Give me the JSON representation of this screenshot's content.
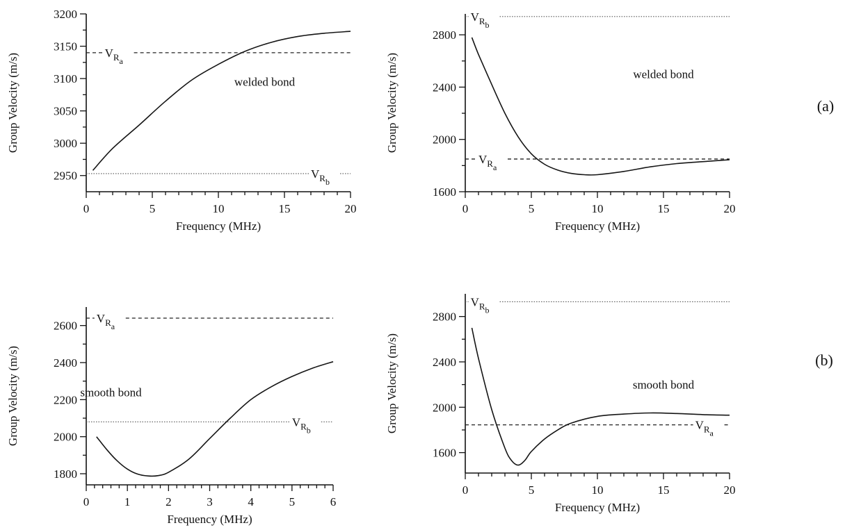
{
  "figure": {
    "row_labels": [
      "(a)",
      "(b)"
    ]
  },
  "chart_data": [
    {
      "type": "line",
      "row": "(a)",
      "xlabel": "Frequency (MHz)",
      "ylabel": "Group Velocity (m/s)",
      "xlim": [
        0,
        20
      ],
      "ylim": [
        2925,
        3200
      ],
      "xticks": [
        0,
        5,
        10,
        15,
        20
      ],
      "yticks": [
        2950,
        3000,
        3050,
        3100,
        3150,
        3200
      ],
      "annotation": {
        "text": "welded bond",
        "at": [
          13.5,
          3095
        ]
      },
      "reference_lines": [
        {
          "label": "Vₐ",
          "sym": "V",
          "sub": "R",
          "subsub": "a",
          "y": 3140,
          "style": "dashed",
          "x_range": [
            0,
            20
          ],
          "label_at": [
            1.4,
            3140
          ]
        },
        {
          "label": "Vᵦ",
          "sym": "V",
          "sub": "R",
          "subsub": "b",
          "y": 2953,
          "style": "dotted",
          "x_range": [
            0,
            20
          ],
          "label_at": [
            17.0,
            2953
          ]
        }
      ],
      "series": [
        {
          "x": [
            0.5,
            2,
            4,
            6,
            8,
            10,
            12,
            14,
            16,
            18,
            20
          ],
          "y": [
            2958,
            2992,
            3028,
            3065,
            3098,
            3122,
            3142,
            3156,
            3165,
            3170,
            3173
          ]
        }
      ]
    },
    {
      "type": "line",
      "row": "(a)",
      "xlabel": "Frequency (MHz)",
      "ylabel": "Group Velocity (m/s)",
      "xlim": [
        0,
        20
      ],
      "ylim": [
        1600,
        2960
      ],
      "xticks": [
        0,
        5,
        10,
        15,
        20
      ],
      "yticks": [
        1600,
        2000,
        2400,
        2800
      ],
      "annotation": {
        "text": "welded bond",
        "at": [
          15,
          2500
        ]
      },
      "reference_lines": [
        {
          "label": "Vᵦ",
          "sym": "V",
          "sub": "R",
          "subsub": "b",
          "y": 2940,
          "style": "dotted",
          "x_range": [
            0,
            20
          ],
          "label_at": [
            0.4,
            2940
          ]
        },
        {
          "label": "Vₐ",
          "sym": "V",
          "sub": "R",
          "subsub": "a",
          "y": 1850,
          "style": "dashed",
          "x_range": [
            0,
            20
          ],
          "label_at": [
            1.0,
            1850
          ]
        }
      ],
      "series": [
        {
          "x": [
            0.5,
            1,
            2,
            3,
            4,
            5,
            6,
            7,
            8,
            9,
            10,
            12,
            14,
            16,
            18,
            20
          ],
          "y": [
            2780,
            2650,
            2420,
            2200,
            2020,
            1890,
            1810,
            1765,
            1740,
            1730,
            1730,
            1755,
            1790,
            1815,
            1830,
            1845
          ]
        }
      ]
    },
    {
      "type": "line",
      "row": "(b)",
      "xlabel": "Frequency (MHz)",
      "ylabel": "Group Velocity (m/s)",
      "xlim": [
        0,
        6
      ],
      "ylim": [
        1740,
        2700
      ],
      "xticks": [
        0,
        1,
        2,
        3,
        4,
        5,
        6
      ],
      "yticks": [
        1800,
        2000,
        2200,
        2400,
        2600
      ],
      "annotation": {
        "text": "smooth bond",
        "at": [
          0.6,
          2240
        ]
      },
      "reference_lines": [
        {
          "label": "Vₐ",
          "sym": "V",
          "sub": "R",
          "subsub": "a",
          "y": 2640,
          "style": "dashed",
          "x_range": [
            0,
            6
          ],
          "label_at": [
            0.25,
            2640
          ]
        },
        {
          "label": "Vᵦ",
          "sym": "V",
          "sub": "R",
          "subsub": "b",
          "y": 2080,
          "style": "dotted",
          "x_range": [
            0,
            6
          ],
          "label_at": [
            5.0,
            2080
          ]
        }
      ],
      "series": [
        {
          "x": [
            0.25,
            0.5,
            0.75,
            1.0,
            1.25,
            1.5,
            1.75,
            2.0,
            2.5,
            3.0,
            3.5,
            4.0,
            4.5,
            5.0,
            5.5,
            6.0
          ],
          "y": [
            2000,
            1930,
            1870,
            1825,
            1798,
            1788,
            1790,
            1808,
            1880,
            1990,
            2100,
            2200,
            2270,
            2325,
            2370,
            2405
          ]
        }
      ]
    },
    {
      "type": "line",
      "row": "(b)",
      "xlabel": "Frequency (MHz)",
      "ylabel": "Group Velocity (m/s)",
      "xlim": [
        0,
        20
      ],
      "ylim": [
        1420,
        3000
      ],
      "xticks": [
        0,
        5,
        10,
        15,
        20
      ],
      "yticks": [
        1600,
        2000,
        2400,
        2800
      ],
      "annotation": {
        "text": "smooth bond",
        "at": [
          15,
          2200
        ]
      },
      "reference_lines": [
        {
          "label": "Vᵦ",
          "sym": "V",
          "sub": "R",
          "subsub": "b",
          "y": 2930,
          "style": "dotted",
          "x_range": [
            0,
            20
          ],
          "label_at": [
            0.4,
            2930
          ]
        },
        {
          "label": "Vₐ",
          "sym": "V",
          "sub": "R",
          "subsub": "a",
          "y": 1845,
          "style": "dashed",
          "x_range": [
            0,
            20
          ],
          "label_at": [
            17.4,
            1845
          ]
        }
      ],
      "series": [
        {
          "x": [
            0.5,
            1,
            2,
            3,
            3.5,
            4,
            4.5,
            5,
            6,
            7,
            8,
            10,
            12,
            14,
            16,
            18,
            20
          ],
          "y": [
            2700,
            2430,
            1980,
            1640,
            1530,
            1490,
            1530,
            1610,
            1720,
            1800,
            1860,
            1920,
            1940,
            1950,
            1945,
            1935,
            1930
          ]
        }
      ]
    }
  ]
}
